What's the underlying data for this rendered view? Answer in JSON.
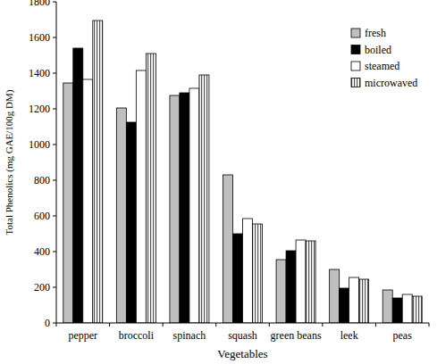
{
  "chart_data": {
    "type": "bar",
    "x_label": "Vegetables",
    "y_label": "Total Phenolics (mg GAE/100g DM)",
    "categories": [
      "pepper",
      "broccoli",
      "spinach",
      "squash",
      "green beans",
      "leek",
      "peas"
    ],
    "series": [
      {
        "name": "fresh",
        "color": "#bfbfbf",
        "values": [
          1345,
          1205,
          1275,
          830,
          355,
          300,
          185
        ]
      },
      {
        "name": "boiled",
        "color": "#000000",
        "values": [
          1540,
          1125,
          1290,
          500,
          405,
          195,
          140
        ]
      },
      {
        "name": "steamed",
        "color": "#ffffff",
        "values": [
          1365,
          1415,
          1315,
          585,
          465,
          255,
          160
        ]
      },
      {
        "name": "microwaved",
        "color": "#555555",
        "marker": "vertical-stripes",
        "values": [
          1695,
          1510,
          1390,
          555,
          460,
          245,
          150
        ]
      }
    ],
    "ylim": [
      0,
      1800
    ],
    "yticks": [
      0,
      200,
      400,
      600,
      800,
      1000,
      1200,
      1400,
      1600,
      1800
    ],
    "legend": "top-right",
    "grid": false
  }
}
